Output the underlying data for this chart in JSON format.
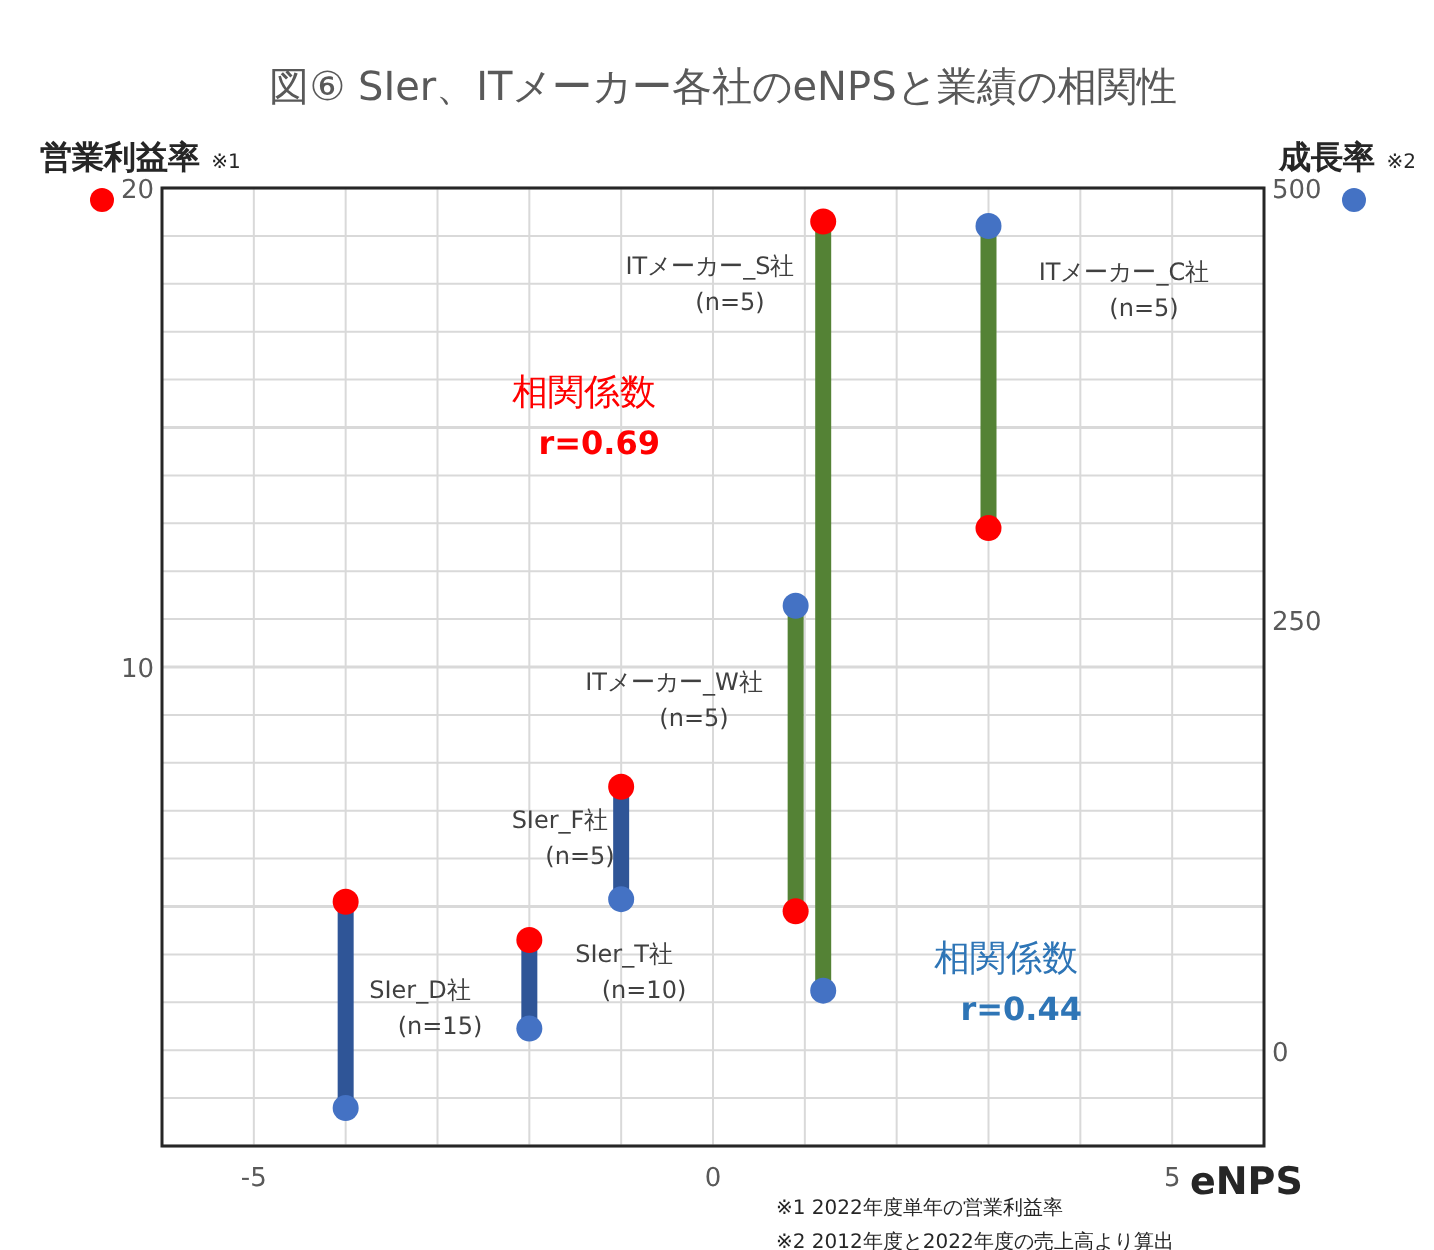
{
  "chart_data": {
    "type": "scatter",
    "title": "図⑥ SIer、ITメーカー各社のeNPSと業績の相関性",
    "xlabel": "eNPS",
    "ylabel": "営業利益率 ※1",
    "y2label": "成長率 ※2",
    "series": [
      {
        "color": "#ff0000",
        "marker": "circle",
        "x": [
          -4,
          -2,
          -1,
          0.9,
          1.2,
          3
        ],
        "values": [
          5.1,
          4.3,
          7.5,
          4.9,
          19.3,
          12.9
        ]
      },
      {
        "color": "#4472c4",
        "marker": "circle",
        "axis": "y2",
        "x": [
          -4,
          -2,
          -1,
          0.9,
          1.2,
          3
        ],
        "values": [
          -33,
          13,
          88,
          258,
          35,
          478
        ]
      },
      {
        "type": "line",
        "color": "#2f5597",
        "axis": "y2",
        "x": [
          -4,
          -4
        ],
        "values": [
          -33,
          87
        ]
      },
      {
        "type": "line",
        "color": "#2f5597",
        "axis": "y2",
        "x": [
          -2,
          -2
        ],
        "values": [
          13,
          64
        ]
      },
      {
        "type": "line",
        "color": "#2f5597",
        "axis": "y2",
        "x": [
          -1,
          -1
        ],
        "values": [
          88,
          153
        ]
      },
      {
        "type": "line",
        "color": "#548235",
        "axis": "y2",
        "x": [
          0.9,
          0.9
        ],
        "values": [
          81,
          258
        ]
      },
      {
        "type": "line",
        "color": "#548235",
        "axis": "y2",
        "x": [
          1.2,
          1.2
        ],
        "values": [
          35,
          481
        ]
      },
      {
        "type": "line",
        "color": "#548235",
        "axis": "y2",
        "x": [
          3,
          3
        ],
        "values": [
          303,
          478
        ]
      }
    ],
    "xlim": [
      -6,
      6
    ],
    "xticks": [
      {
        "value": -6,
        "label": null
      },
      -5,
      {
        "value": -4,
        "label": null
      },
      {
        "value": -3,
        "label": null
      },
      {
        "value": -2,
        "label": null
      },
      {
        "value": -1,
        "label": null
      },
      0,
      {
        "value": 1,
        "label": null
      },
      {
        "value": 2,
        "label": null
      },
      {
        "value": 3,
        "label": null
      },
      {
        "value": 4,
        "label": null
      },
      5,
      {
        "value": 6,
        "label": null
      }
    ],
    "ylim": [
      0,
      20
    ],
    "yticks": [
      {
        "value": 0,
        "label": null
      },
      {
        "value": 1,
        "label": null
      },
      {
        "value": 2,
        "label": null
      },
      {
        "value": 3,
        "label": null
      },
      {
        "value": 4,
        "label": null
      },
      {
        "value": 5,
        "label": null
      },
      {
        "value": 6,
        "label": null
      },
      {
        "value": 7,
        "label": null
      },
      {
        "value": 8,
        "label": null
      },
      {
        "value": 9,
        "label": null
      },
      10,
      {
        "value": 11,
        "label": null
      },
      {
        "value": 12,
        "label": null
      },
      {
        "value": 13,
        "label": null
      },
      {
        "value": 14,
        "label": null
      },
      {
        "value": 15,
        "label": null
      },
      {
        "value": 16,
        "label": null
      },
      {
        "value": 17,
        "label": null
      },
      {
        "value": 18,
        "label": null
      },
      {
        "value": 19,
        "label": null
      },
      20
    ],
    "y2lim": [
      -55,
      500
    ],
    "y2ticks": [
      0,
      250,
      500
    ],
    "grid": true,
    "annotations": [
      "SIer_D社 (n=15)",
      "SIer_T社 (n=10)",
      "SIer_F社 (n=5)",
      "ITメーカー_W社 (n=5)",
      "ITメーカー_S社 (n=5)",
      "ITメーカー_C社 (n=5)",
      "相関係数 r=0.69",
      "相関係数 r=0.44",
      "※1 2022年度単年の営業利益率",
      "※2 2012年度と2022年度の売上高より算出"
    ]
  }
}
